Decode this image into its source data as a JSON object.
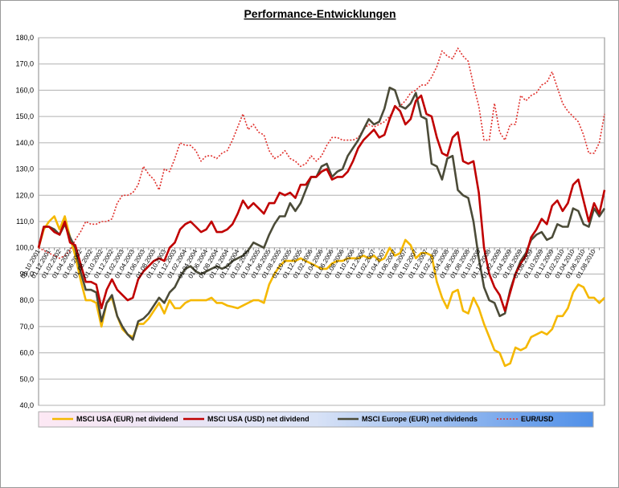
{
  "chart_data": {
    "type": "line",
    "title": "Performance-Entwicklungen",
    "categories": [
      "01.10.2001",
      null,
      "01.12.2001",
      null,
      "01.02.2002",
      null,
      "01.04.2002",
      null,
      "01.06.2002",
      null,
      "01.08.2002",
      null,
      "01.10.2002",
      null,
      "01.12.2002",
      null,
      "01.02.2003",
      null,
      "01.04.2003",
      null,
      "01.06.2003",
      null,
      "01.08.2003",
      null,
      "01.10.2003",
      null,
      "01.12.2003",
      null,
      "01.02.2004",
      null,
      "01.04.2004",
      null,
      "01.06.2004",
      null,
      "01.08.2004",
      null,
      "01.10.2004",
      null,
      "01.12.2004",
      null,
      "01.02.2005",
      null,
      "01.04.2005",
      null,
      "01.06.2005",
      null,
      "01.08.2005",
      null,
      "01.10.2005",
      null,
      "01.12.2005",
      null,
      "01.02.2006",
      null,
      "01.04.2006",
      null,
      "01.06.2006",
      null,
      "01.08.2006",
      null,
      "01.10.2006",
      null,
      "01.12.2006",
      null,
      "01.02.2007",
      null,
      "01.04.2007",
      null,
      "01.06.2007",
      null,
      "01.08.2007",
      null,
      "01.10.2007",
      null,
      "01.12.2007",
      null,
      "01.02.2008",
      null,
      "01.04.2008",
      null,
      "01.06.2008",
      null,
      "01.08.2008",
      null,
      "01.10.2008",
      null,
      "01.12.2008",
      null,
      "01.02.2009",
      null,
      "01.04.2009",
      null,
      "01.06.2009",
      null,
      "01.08.2009",
      null,
      "01.10.2009",
      null,
      "01.12.2009",
      null,
      "01.02.2010",
      null,
      "01.04.2010",
      null,
      "01.06.2010",
      null,
      "01.08.2010",
      null,
      null
    ],
    "series": [
      {
        "name": "MSCI USA (EUR) net dividend",
        "color": "#f5b800",
        "dash": false,
        "values": [
          100,
          107,
          110,
          112,
          107,
          112,
          104,
          97,
          88,
          80,
          80,
          79,
          70,
          79,
          81,
          74,
          69,
          67,
          66,
          71,
          71,
          73,
          76,
          79,
          75,
          80,
          77,
          77,
          79,
          80,
          80,
          80,
          80,
          81,
          79,
          79,
          78,
          77.5,
          77,
          78,
          79,
          80,
          80,
          79,
          86,
          90,
          93,
          95,
          95,
          95,
          96,
          95,
          94,
          93,
          92,
          92,
          94,
          95,
          95,
          96,
          96,
          96,
          97,
          96,
          97,
          95,
          96,
          100,
          97,
          98,
          103,
          101,
          96,
          98,
          98,
          97,
          87,
          81,
          77,
          83,
          84,
          76,
          75,
          81,
          77,
          71,
          66,
          61,
          60,
          55,
          56,
          62,
          61,
          62,
          66,
          67,
          68,
          67,
          69,
          74,
          74,
          77,
          83,
          86,
          85,
          81,
          81,
          79,
          81
        ]
      },
      {
        "name": "MSCI USA (USD) net dividend",
        "color": "#c00000",
        "dash": false,
        "values": [
          100,
          108,
          108,
          106,
          105,
          110,
          102,
          101,
          94,
          87,
          87,
          86,
          77,
          84,
          88,
          84,
          82,
          80,
          81,
          88,
          91,
          93,
          95,
          96,
          95,
          100,
          102,
          107,
          109,
          110,
          108,
          106,
          107,
          110,
          106,
          106,
          107,
          109,
          113,
          118,
          115,
          117,
          115,
          113,
          117,
          117,
          121,
          120,
          121,
          119,
          124,
          124,
          127,
          127,
          129,
          130,
          126,
          127,
          127,
          129,
          133,
          138,
          141,
          143,
          145,
          142,
          143,
          149,
          154,
          152,
          147,
          149,
          156,
          158,
          151,
          150,
          142,
          136,
          135,
          142,
          144,
          133,
          132,
          133,
          121,
          100,
          90,
          85,
          82,
          76,
          83,
          90,
          94,
          97,
          104,
          107,
          111,
          109,
          116,
          118,
          114,
          117,
          124,
          126,
          118,
          110,
          117,
          113,
          122
        ]
      },
      {
        "name": "MSCI Europe (EUR) net dividends",
        "color": "#4b4b38",
        "dash": false,
        "values": [
          100,
          108,
          108,
          107,
          105,
          109,
          104,
          100,
          91,
          84,
          84,
          83,
          72,
          79,
          82,
          74,
          70,
          67,
          65,
          72,
          73,
          75,
          78,
          81,
          79,
          83,
          85,
          89,
          92,
          93,
          91,
          90,
          91,
          92,
          93,
          92,
          93,
          95,
          96,
          97,
          99,
          102,
          101,
          100,
          105,
          109,
          112,
          112,
          117,
          114,
          117,
          122,
          127,
          127,
          131,
          132,
          127,
          129,
          130,
          135,
          138,
          141,
          145,
          149,
          147,
          148,
          153,
          161,
          160,
          154,
          153,
          155,
          159,
          150,
          149,
          132,
          131,
          126,
          134,
          135,
          122,
          120,
          119,
          110,
          96,
          85,
          80,
          79,
          74,
          75,
          84,
          90,
          95,
          98,
          103,
          105,
          106,
          103,
          104,
          109,
          108,
          108,
          115,
          114,
          109,
          108,
          115,
          112,
          115
        ]
      },
      {
        "name": "EUR/USD",
        "color": "#e0302c",
        "dash": true,
        "values": [
          100,
          99,
          98,
          97,
          96,
          97,
          99,
          103,
          106,
          110,
          109,
          109,
          110,
          110,
          111,
          117,
          120,
          120,
          121,
          124,
          131,
          128,
          126,
          122,
          130,
          129,
          134,
          140,
          139,
          139,
          137,
          133,
          135,
          135,
          134,
          136,
          137,
          141,
          146,
          151,
          145,
          147,
          144,
          143,
          137,
          134,
          135,
          137,
          134,
          133,
          131,
          132,
          135,
          133,
          135,
          139,
          142,
          142,
          141,
          141,
          141,
          142,
          145,
          147,
          146,
          147,
          148,
          150,
          153,
          154,
          156,
          159,
          160,
          162,
          162,
          165,
          169,
          175,
          173,
          172,
          176,
          173,
          171,
          162,
          154,
          141,
          141,
          155,
          144,
          141,
          147,
          147,
          158,
          156,
          158,
          159,
          162,
          163,
          167,
          161,
          155,
          152,
          150,
          148,
          143,
          136,
          136,
          140,
          151
        ]
      }
    ],
    "ylim": [
      40,
      180
    ],
    "yticks": [
      {
        "value": 40,
        "label": "40,0"
      },
      {
        "value": 50,
        "label": "50,0"
      },
      {
        "value": 60,
        "label": "60,0"
      },
      {
        "value": 70,
        "label": "70,0"
      },
      {
        "value": 80,
        "label": "80,0"
      },
      {
        "value": 90,
        "label": "90,0"
      },
      {
        "value": 100,
        "label": "100,0"
      },
      {
        "value": 110,
        "label": "110,0"
      },
      {
        "value": 120,
        "label": "120,0"
      },
      {
        "value": 130,
        "label": "130,0"
      },
      {
        "value": 140,
        "label": "140,0"
      },
      {
        "value": 150,
        "label": "150,0"
      },
      {
        "value": 160,
        "label": "160,0"
      },
      {
        "value": 170,
        "label": "170,0"
      },
      {
        "value": 180,
        "label": "180,0"
      }
    ],
    "grid": true
  }
}
